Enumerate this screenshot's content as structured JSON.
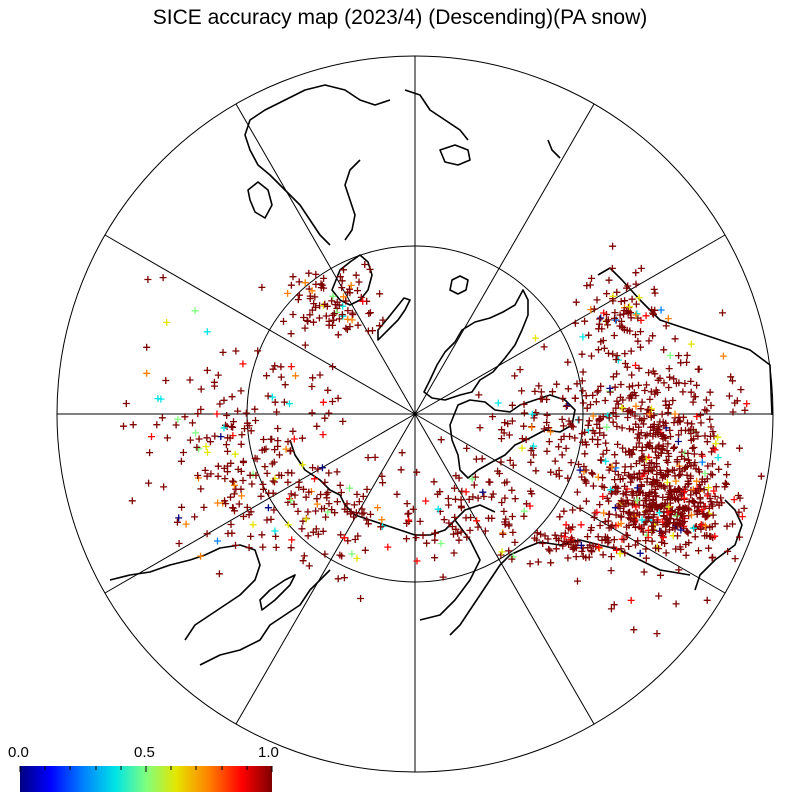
{
  "title": "SICE accuracy map (2023/4) (Descending)(PA snow)",
  "colorbar": {
    "min_label": "0.0",
    "mid_label": "0.5",
    "max_label": "1.0",
    "colors": [
      "#00007f",
      "#0000ff",
      "#0080ff",
      "#00e5e5",
      "#7fff7f",
      "#e5e500",
      "#ff8000",
      "#ff0000",
      "#7f0000"
    ]
  },
  "map": {
    "projection": "north polar stereographic",
    "graticule": {
      "meridian_count": 12,
      "inner_parallel": true
    },
    "marker_symbol": "+"
  }
}
